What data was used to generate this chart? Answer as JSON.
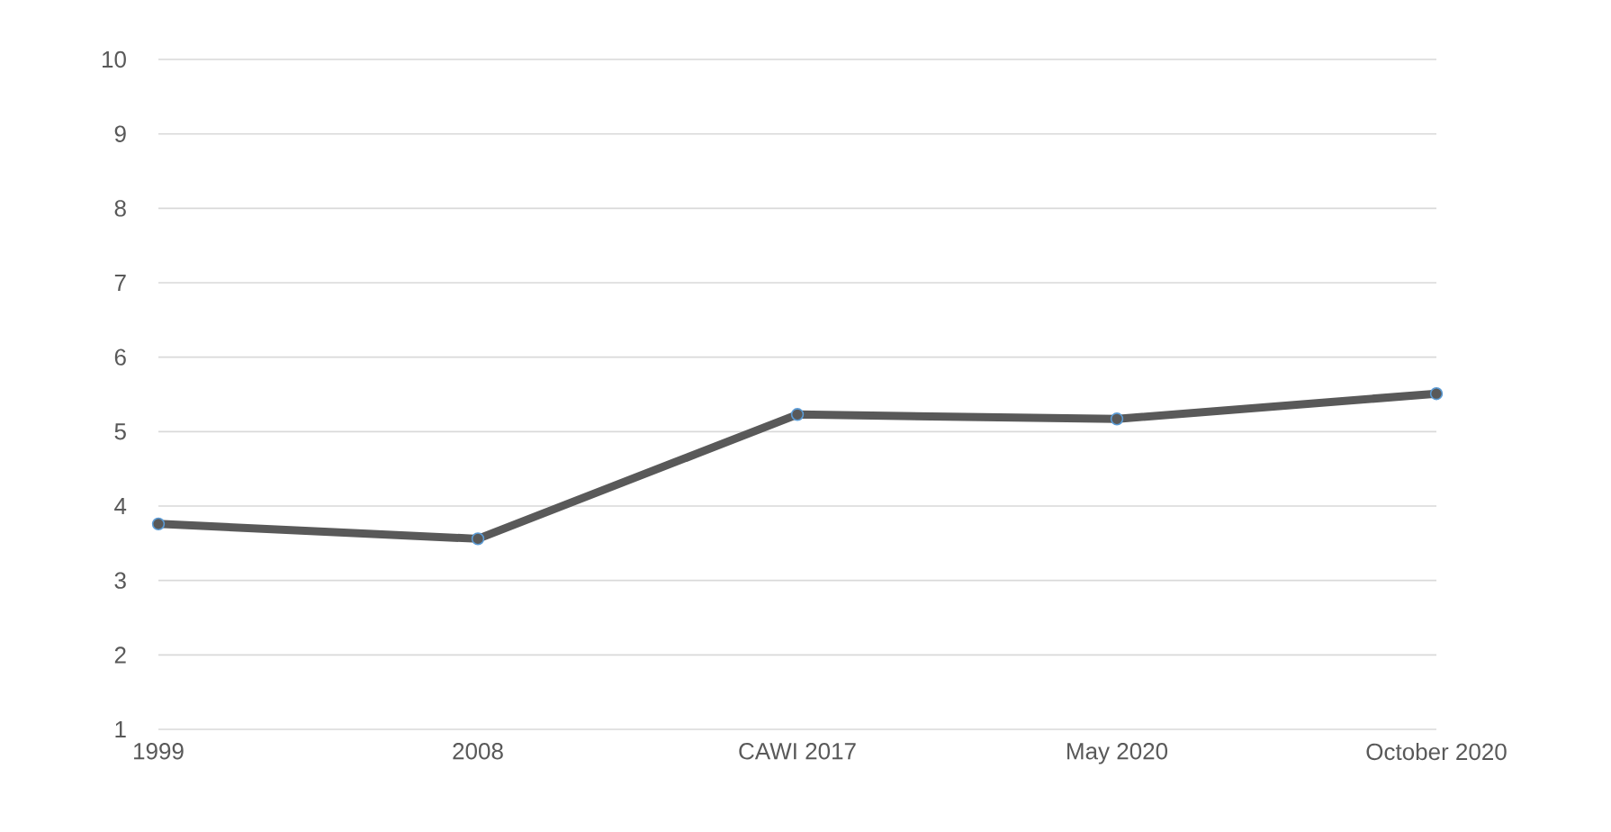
{
  "chart_data": {
    "type": "line",
    "categories": [
      "1999",
      "2008",
      "CAWI 2017",
      "May 2020",
      "October 2020"
    ],
    "series": [
      {
        "color": "#595959",
        "values": [
          3.76,
          3.56,
          5.23,
          5.17,
          5.51
        ]
      }
    ],
    "ylim": [
      1,
      10
    ],
    "yticks": [
      1,
      2,
      3,
      4,
      5,
      6,
      7,
      8,
      9,
      10
    ],
    "grid": "y",
    "marker": "circle",
    "line_style": "solid"
  }
}
